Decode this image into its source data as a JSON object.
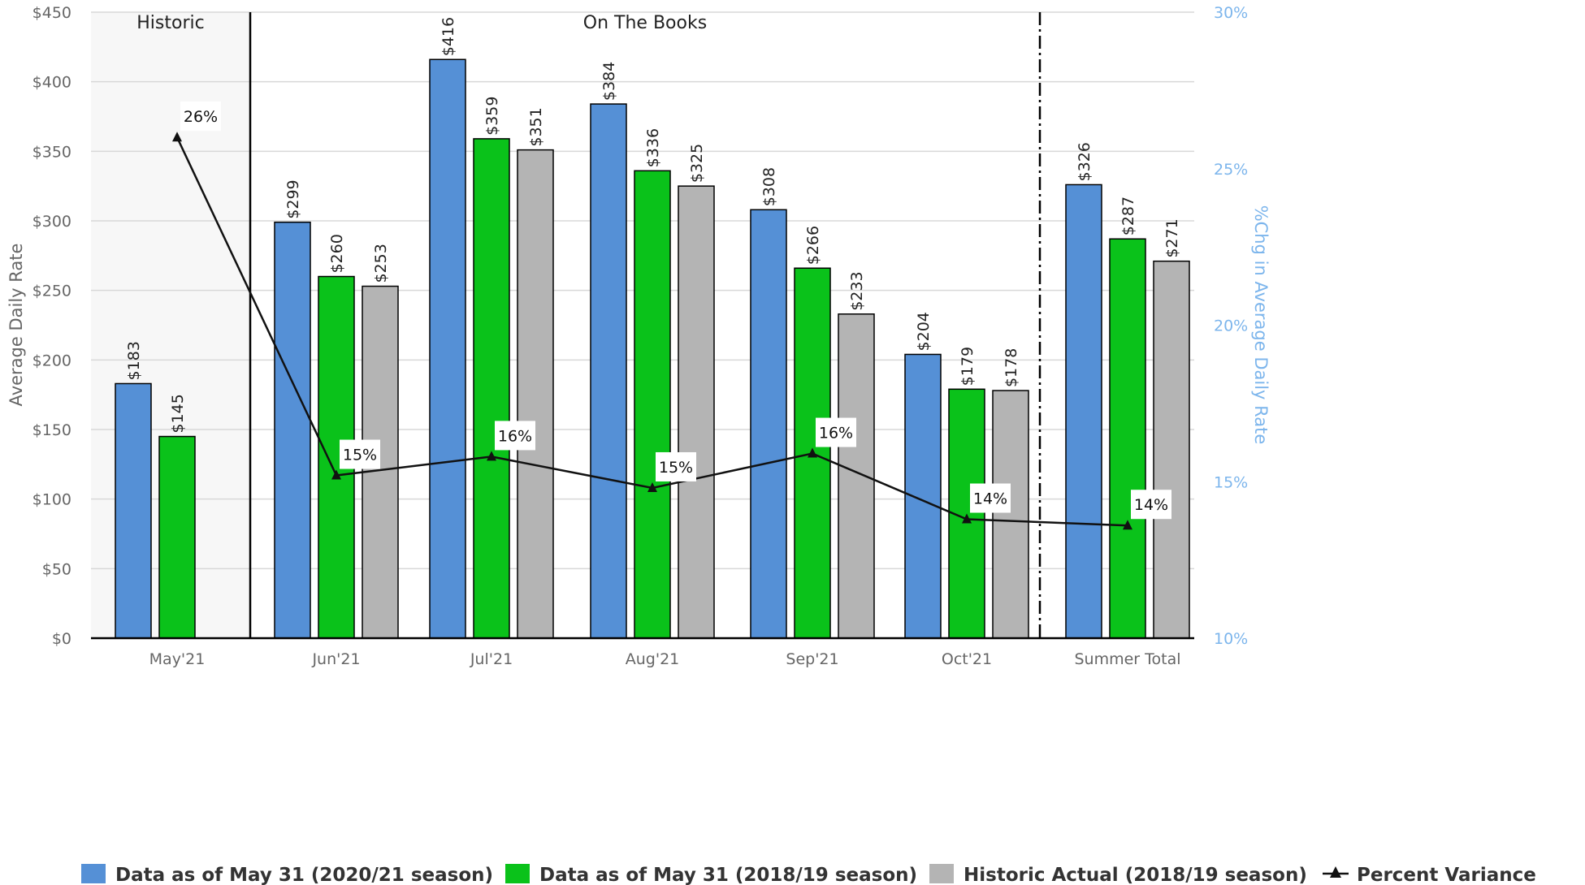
{
  "chart_data": {
    "type": "bar",
    "categories": [
      "May'21",
      "Jun'21",
      "Jul'21",
      "Aug'21",
      "Sep'21",
      "Oct'21",
      "Summer Total"
    ],
    "series": [
      {
        "name": "Data as of May 31 (2020/21 season)",
        "color": "#5590d6",
        "values": [
          183,
          299,
          416,
          384,
          308,
          204,
          326
        ],
        "labels": [
          "$183",
          "$299",
          "$416",
          "$384",
          "$308",
          "$204",
          "$326"
        ]
      },
      {
        "name": "Data as of May 31 (2018/19 season)",
        "color": "#0ac21a",
        "values": [
          145,
          260,
          359,
          336,
          266,
          179,
          287
        ],
        "labels": [
          "$145",
          "$260",
          "$359",
          "$336",
          "$266",
          "$179",
          "$287"
        ]
      },
      {
        "name": "Historic Actual (2018/19 season)",
        "color": "#b4b4b4",
        "values": [
          null,
          253,
          351,
          325,
          233,
          178,
          271
        ],
        "labels": [
          "",
          "$253",
          "$351",
          "$325",
          "$233",
          "$178",
          "$271"
        ]
      }
    ],
    "line_series": {
      "name": "Percent Variance",
      "type": "line",
      "axis": "right",
      "marker": "triangle",
      "color": "#111111",
      "values": [
        26,
        15.2,
        15.8,
        14.8,
        15.9,
        13.8,
        13.6
      ],
      "labels": [
        "26%",
        "15%",
        "16%",
        "15%",
        "16%",
        "14%",
        "14%"
      ]
    },
    "y_axis": {
      "label": "Average Daily Rate",
      "range": [
        0,
        450
      ],
      "ticks": [
        0,
        50,
        100,
        150,
        200,
        250,
        300,
        350,
        400,
        450
      ],
      "tick_labels": [
        "$0",
        "$50",
        "$100",
        "$150",
        "$200",
        "$250",
        "$300",
        "$350",
        "$400",
        "$450"
      ]
    },
    "y2_axis": {
      "label": "%Chg in Average Daily Rate",
      "color": "#7cb5ec",
      "range": [
        10,
        30
      ],
      "ticks": [
        10,
        15,
        20,
        25,
        30
      ],
      "tick_labels": [
        "10%",
        "15%",
        "20%",
        "25%",
        "30%"
      ]
    },
    "regions": [
      {
        "label": "Historic",
        "categories": [
          "May'21"
        ],
        "shaded": true
      },
      {
        "label": "On The Books",
        "categories": [
          "Jun'21",
          "Jul'21",
          "Aug'21",
          "Sep'21",
          "Oct'21"
        ],
        "shaded": false
      }
    ],
    "grid": true,
    "legend_position": "bottom"
  }
}
